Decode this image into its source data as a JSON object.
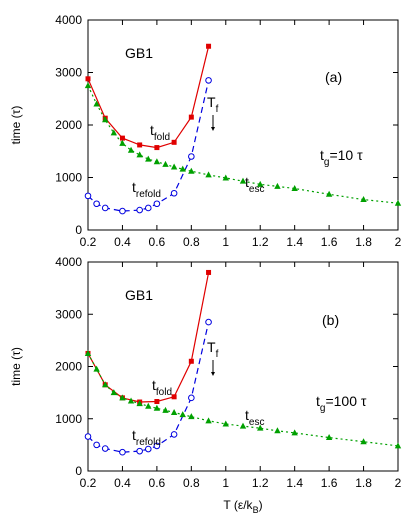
{
  "chart_data": [
    {
      "type": "line",
      "panel_label": "(a)",
      "protein_label": "GB1",
      "condition_label": {
        "base": "t",
        "sub": "g",
        "rest": "=10 τ"
      },
      "tf_label": {
        "base": "T",
        "sub": "f"
      },
      "ylabel": "time (τ)",
      "xlabel": "",
      "xlim": [
        0.2,
        2
      ],
      "ylim": [
        0,
        4000
      ],
      "x_ticks": [
        0.2,
        0.4,
        0.6,
        0.8,
        1,
        1.2,
        1.4,
        1.6,
        1.8,
        2
      ],
      "y_ticks": [
        0,
        1000,
        2000,
        3000,
        4000
      ],
      "grid": false,
      "tf_arrow_x": 0.91,
      "series": [
        {
          "label": {
            "base": "t",
            "sub": "fold"
          },
          "color": "#e00000",
          "line_style": "solid",
          "marker": "square",
          "x": [
            0.2,
            0.3,
            0.4,
            0.5,
            0.6,
            0.7,
            0.8,
            0.9
          ],
          "y": [
            2880,
            2130,
            1750,
            1620,
            1570,
            1670,
            2150,
            3500
          ]
        },
        {
          "label": {
            "base": "t",
            "sub": "refold"
          },
          "color": "#0000e0",
          "line_style": "dashed",
          "marker": "circle-open",
          "x": [
            0.2,
            0.25,
            0.3,
            0.4,
            0.5,
            0.55,
            0.6,
            0.7,
            0.8,
            0.9
          ],
          "y": [
            650,
            500,
            420,
            360,
            380,
            420,
            500,
            700,
            1400,
            2850
          ]
        },
        {
          "label": {
            "base": "t",
            "sub": "esc"
          },
          "color": "#00a000",
          "line_style": "dotted",
          "marker": "triangle",
          "x": [
            0.2,
            0.25,
            0.3,
            0.35,
            0.4,
            0.45,
            0.5,
            0.55,
            0.6,
            0.65,
            0.7,
            0.75,
            0.8,
            0.9,
            1.0,
            1.1,
            1.2,
            1.3,
            1.4,
            1.6,
            1.8,
            2.0
          ],
          "y": [
            2750,
            2400,
            2100,
            1850,
            1650,
            1520,
            1430,
            1350,
            1300,
            1250,
            1200,
            1160,
            1120,
            1050,
            990,
            930,
            870,
            830,
            790,
            680,
            580,
            510
          ]
        }
      ]
    },
    {
      "type": "line",
      "panel_label": "(b)",
      "protein_label": "GB1",
      "condition_label": {
        "base": "t",
        "sub": "g",
        "rest": "=100 τ"
      },
      "tf_label": {
        "base": "T",
        "sub": "f"
      },
      "ylabel": "time (τ)",
      "xlabel": {
        "base": "T (ε/k",
        "sub": "B",
        "rest": ")"
      },
      "xlim": [
        0.2,
        2
      ],
      "ylim": [
        0,
        4000
      ],
      "x_ticks": [
        0.2,
        0.4,
        0.6,
        0.8,
        1,
        1.2,
        1.4,
        1.6,
        1.8,
        2
      ],
      "y_ticks": [
        0,
        1000,
        2000,
        3000,
        4000
      ],
      "grid": false,
      "tf_arrow_x": 0.91,
      "series": [
        {
          "label": {
            "base": "t",
            "sub": "fold"
          },
          "color": "#e00000",
          "line_style": "solid",
          "marker": "square",
          "x": [
            0.2,
            0.3,
            0.4,
            0.5,
            0.6,
            0.7,
            0.8,
            0.9
          ],
          "y": [
            2250,
            1650,
            1400,
            1320,
            1330,
            1420,
            2100,
            3800
          ]
        },
        {
          "label": {
            "base": "t",
            "sub": "refold"
          },
          "color": "#0000e0",
          "line_style": "dashed",
          "marker": "circle-open",
          "x": [
            0.2,
            0.25,
            0.3,
            0.4,
            0.5,
            0.55,
            0.6,
            0.7,
            0.8,
            0.9
          ],
          "y": [
            660,
            500,
            430,
            360,
            380,
            420,
            480,
            700,
            1400,
            2850
          ]
        },
        {
          "label": {
            "base": "t",
            "sub": "esc"
          },
          "color": "#00a000",
          "line_style": "dotted",
          "marker": "triangle",
          "x": [
            0.2,
            0.25,
            0.3,
            0.35,
            0.4,
            0.45,
            0.5,
            0.55,
            0.6,
            0.65,
            0.7,
            0.75,
            0.8,
            0.9,
            1.0,
            1.1,
            1.2,
            1.3,
            1.4,
            1.6,
            1.8,
            2.0
          ],
          "y": [
            2250,
            1950,
            1650,
            1500,
            1400,
            1340,
            1290,
            1240,
            1200,
            1160,
            1120,
            1080,
            1040,
            960,
            900,
            860,
            820,
            770,
            730,
            640,
            560,
            480
          ]
        }
      ]
    }
  ]
}
